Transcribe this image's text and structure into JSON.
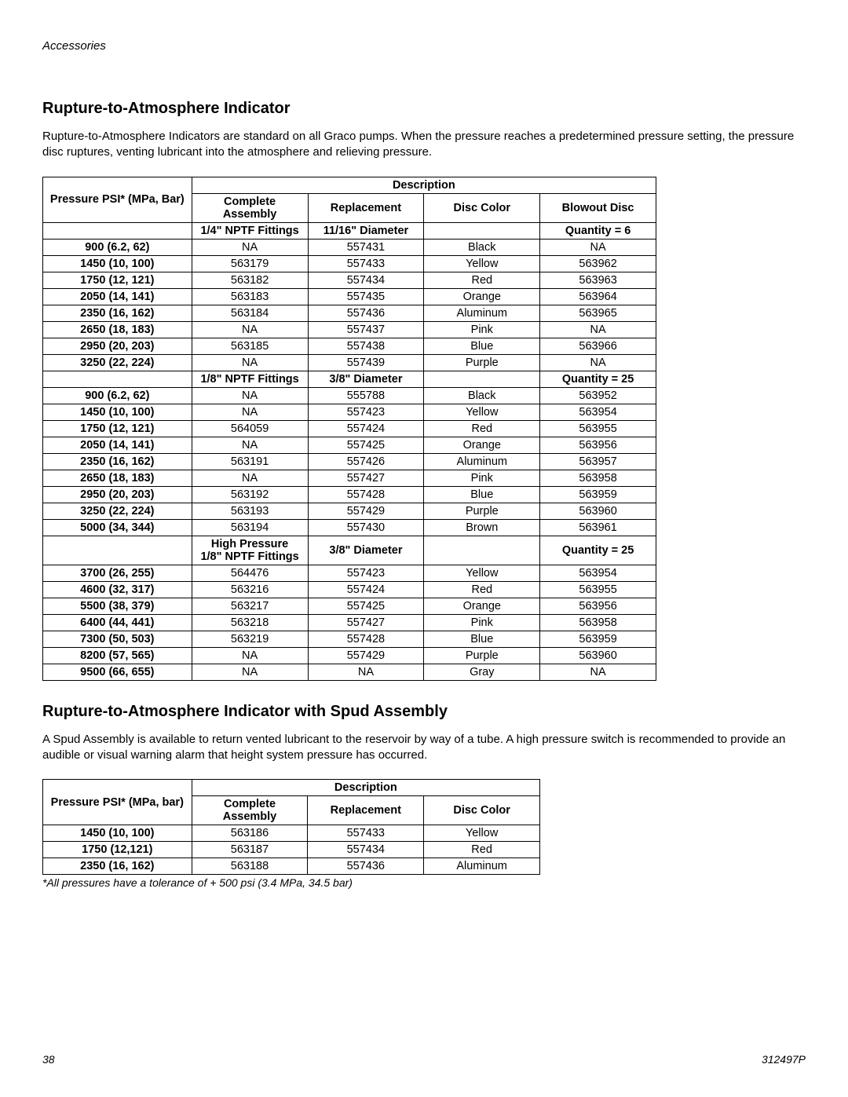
{
  "page": {
    "header_label": "Accessories",
    "page_number": "38",
    "doc_id": "312497P"
  },
  "section1": {
    "title": "Rupture-to-Atmosphere Indicator",
    "intro": "Rupture-to-Atmosphere Indicators are standard on all Graco pumps. When the pressure reaches a predetermined pressure setting, the pressure disc ruptures, venting lubricant into the atmosphere and relieving pressure.",
    "table": {
      "description_label": "Description",
      "col_pressure": "Pressure PSI* (MPa, Bar)",
      "col_assembly": "Complete Assembly",
      "col_replacement": "Replacement",
      "col_disc_color": "Disc Color",
      "col_blowout": "Blowout Disc",
      "group1": {
        "assembly_note": "1/4\" NPTF Fittings",
        "replacement_note": "11/16\" Diameter",
        "blowout_note": "Quantity = 6",
        "rows": [
          {
            "p": "900 (6.2, 62)",
            "a": "NA",
            "r": "557431",
            "c": "Black",
            "b": "NA"
          },
          {
            "p": "1450 (10, 100)",
            "a": "563179",
            "r": "557433",
            "c": "Yellow",
            "b": "563962"
          },
          {
            "p": "1750 (12, 121)",
            "a": "563182",
            "r": "557434",
            "c": "Red",
            "b": "563963"
          },
          {
            "p": "2050 (14, 141)",
            "a": "563183",
            "r": "557435",
            "c": "Orange",
            "b": "563964"
          },
          {
            "p": "2350 (16, 162)",
            "a": "563184",
            "r": "557436",
            "c": "Aluminum",
            "b": "563965"
          },
          {
            "p": "2650 (18, 183)",
            "a": "NA",
            "r": "557437",
            "c": "Pink",
            "b": "NA"
          },
          {
            "p": "2950 (20, 203)",
            "a": "563185",
            "r": "557438",
            "c": "Blue",
            "b": "563966"
          },
          {
            "p": "3250 (22, 224)",
            "a": "NA",
            "r": "557439",
            "c": "Purple",
            "b": "NA"
          }
        ]
      },
      "group2": {
        "assembly_note": "1/8\" NPTF Fittings",
        "replacement_note": "3/8\" Diameter",
        "blowout_note": "Quantity = 25",
        "rows": [
          {
            "p": "900 (6.2, 62)",
            "a": "NA",
            "r": "555788",
            "c": "Black",
            "b": "563952"
          },
          {
            "p": "1450 (10, 100)",
            "a": "NA",
            "r": "557423",
            "c": "Yellow",
            "b": "563954"
          },
          {
            "p": "1750 (12, 121)",
            "a": "564059",
            "r": "557424",
            "c": "Red",
            "b": "563955"
          },
          {
            "p": "2050 (14, 141)",
            "a": "NA",
            "r": "557425",
            "c": "Orange",
            "b": "563956"
          },
          {
            "p": "2350 (16, 162)",
            "a": "563191",
            "r": "557426",
            "c": "Aluminum",
            "b": "563957"
          },
          {
            "p": "2650 (18, 183)",
            "a": "NA",
            "r": "557427",
            "c": "Pink",
            "b": "563958"
          },
          {
            "p": "2950 (20, 203)",
            "a": "563192",
            "r": "557428",
            "c": "Blue",
            "b": "563959"
          },
          {
            "p": "3250 (22, 224)",
            "a": "563193",
            "r": "557429",
            "c": "Purple",
            "b": "563960"
          },
          {
            "p": "5000 (34, 344)",
            "a": "563194",
            "r": "557430",
            "c": "Brown",
            "b": "563961"
          }
        ]
      },
      "group3": {
        "assembly_note_line1": "High Pressure",
        "assembly_note_line2": "1/8\" NPTF Fittings",
        "replacement_note": "3/8\" Diameter",
        "blowout_note": "Quantity = 25",
        "rows": [
          {
            "p": "3700 (26, 255)",
            "a": "564476",
            "r": "557423",
            "c": "Yellow",
            "b": "563954"
          },
          {
            "p": "4600 (32, 317)",
            "a": "563216",
            "r": "557424",
            "c": "Red",
            "b": "563955"
          },
          {
            "p": "5500 (38, 379)",
            "a": "563217",
            "r": "557425",
            "c": "Orange",
            "b": "563956"
          },
          {
            "p": "6400 (44, 441)",
            "a": "563218",
            "r": "557427",
            "c": "Pink",
            "b": "563958"
          },
          {
            "p": "7300 (50, 503)",
            "a": "563219",
            "r": "557428",
            "c": "Blue",
            "b": "563959"
          },
          {
            "p": "8200 (57, 565)",
            "a": "NA",
            "r": "557429",
            "c": "Purple",
            "b": "563960"
          },
          {
            "p": "9500 (66, 655)",
            "a": "NA",
            "r": "NA",
            "c": "Gray",
            "b": "NA"
          }
        ]
      }
    }
  },
  "section2": {
    "title": "Rupture-to-Atmosphere Indicator with Spud Assembly",
    "intro": "A Spud Assembly is available to return vented lubricant to the reservoir by way of a tube. A high pressure switch is recommended to provide an audible or visual warning alarm that height system pressure has occurred.",
    "table": {
      "description_label": "Description",
      "col_pressure": "Pressure PSI* (MPa, bar)",
      "col_assembly": "Complete Assembly",
      "col_replacement": "Replacement",
      "col_disc_color": "Disc Color",
      "rows": [
        {
          "p": "1450 (10, 100)",
          "a": "563186",
          "r": "557433",
          "c": "Yellow"
        },
        {
          "p": "1750 (12,121)",
          "a": "563187",
          "r": "557434",
          "c": "Red"
        },
        {
          "p": "2350 (16, 162)",
          "a": "563188",
          "r": "557436",
          "c": "Aluminum"
        }
      ]
    },
    "footnote": "*All pressures have a tolerance of + 500 psi (3.4 MPa, 34.5 bar)"
  }
}
